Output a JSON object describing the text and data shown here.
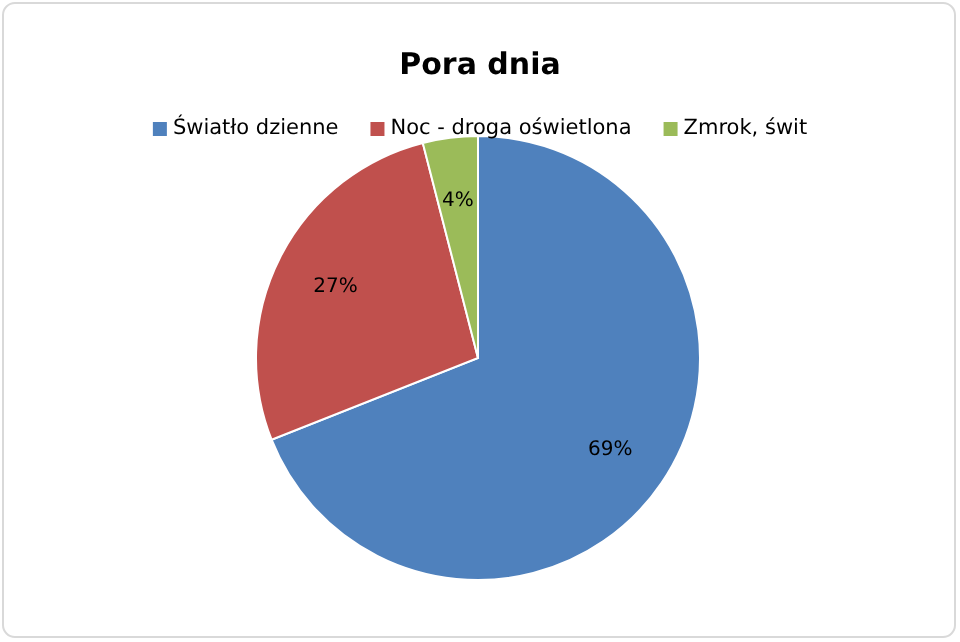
{
  "chart_data": {
    "type": "pie",
    "title": "Pora dnia",
    "categories": [
      "Światło dzienne",
      "Noc - droga oświetlona",
      "Zmrok, świt"
    ],
    "values": [
      69,
      27,
      4
    ],
    "colors": [
      "#4f81bd",
      "#c0504d",
      "#9bbb59"
    ],
    "value_labels": [
      "69%",
      "27%",
      "4%"
    ],
    "legend": "top"
  }
}
